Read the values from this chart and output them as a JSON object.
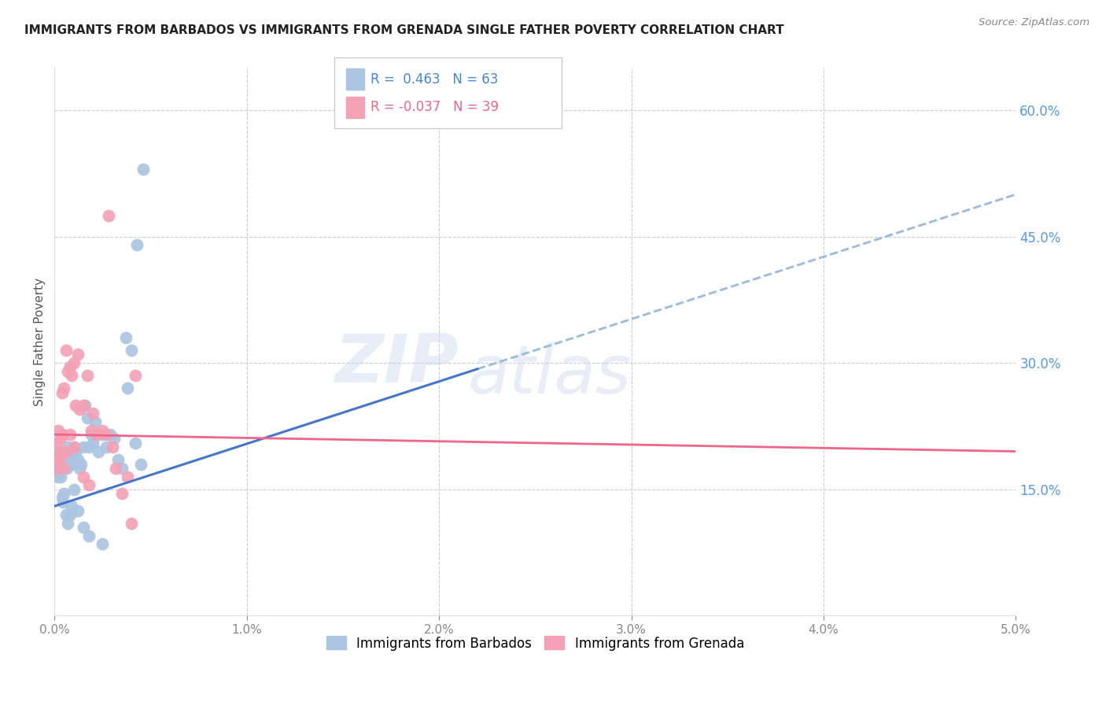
{
  "title": "IMMIGRANTS FROM BARBADOS VS IMMIGRANTS FROM GRENADA SINGLE FATHER POVERTY CORRELATION CHART",
  "source": "Source: ZipAtlas.com",
  "ylabel": "Single Father Poverty",
  "series1_color": "#aac4e2",
  "series2_color": "#f4a0b5",
  "line1_color": "#4477cc",
  "line2_color": "#ee6688",
  "line1_dash_color": "#99bbdd",
  "xmin": 0.0,
  "xmax": 0.05,
  "ymin": 0.0,
  "ymax": 0.65,
  "yticks": [
    0.15,
    0.3,
    0.45,
    0.6
  ],
  "ytick_labels": [
    "15.0%",
    "30.0%",
    "45.0%",
    "60.0%"
  ],
  "xticks": [
    0.0,
    0.01,
    0.02,
    0.03,
    0.04,
    0.05
  ],
  "xtick_labels": [
    "0.0%",
    "1.0%",
    "2.0%",
    "3.0%",
    "4.0%",
    "5.0%"
  ],
  "line1_x0": 0.0,
  "line1_y0": 0.13,
  "line1_x1": 0.05,
  "line1_y1": 0.5,
  "line1_solid_x1": 0.022,
  "line2_x0": 0.0,
  "line2_y0": 0.215,
  "line2_x1": 0.05,
  "line2_y1": 0.195,
  "watermark": "ZIPatlas",
  "barbados_x": [
    0.00015,
    0.0002,
    0.00025,
    0.0003,
    0.00035,
    0.0004,
    0.00045,
    0.0005,
    0.00055,
    0.0006,
    0.00065,
    0.0007,
    0.00075,
    0.0008,
    0.00085,
    0.0009,
    0.00095,
    0.001,
    0.0011,
    0.0012,
    0.0013,
    0.0014,
    0.0015,
    0.0016,
    0.0017,
    0.0018,
    0.0019,
    0.002,
    0.0021,
    0.0022,
    0.0023,
    0.0025,
    0.0027,
    0.0029,
    0.0031,
    0.0033,
    0.0035,
    0.0037,
    0.004,
    0.0042,
    0.0045,
    0.0001,
    0.0001,
    0.00015,
    0.0002,
    0.00025,
    0.0003,
    0.00035,
    0.0004,
    0.00045,
    0.0005,
    0.0006,
    0.0007,
    0.0008,
    0.0009,
    0.001,
    0.0012,
    0.0015,
    0.0018,
    0.0025,
    0.0038,
    0.0043,
    0.0046
  ],
  "barbados_y": [
    0.195,
    0.185,
    0.18,
    0.175,
    0.18,
    0.175,
    0.185,
    0.19,
    0.185,
    0.195,
    0.175,
    0.2,
    0.185,
    0.19,
    0.195,
    0.18,
    0.185,
    0.2,
    0.195,
    0.185,
    0.175,
    0.18,
    0.2,
    0.25,
    0.235,
    0.2,
    0.215,
    0.205,
    0.23,
    0.215,
    0.195,
    0.215,
    0.2,
    0.215,
    0.21,
    0.185,
    0.175,
    0.33,
    0.315,
    0.205,
    0.18,
    0.18,
    0.19,
    0.165,
    0.17,
    0.175,
    0.165,
    0.175,
    0.14,
    0.135,
    0.145,
    0.12,
    0.11,
    0.12,
    0.13,
    0.15,
    0.125,
    0.105,
    0.095,
    0.085,
    0.27,
    0.44,
    0.53
  ],
  "grenada_x": [
    0.0001,
    0.00015,
    0.0002,
    0.00025,
    0.0003,
    0.0004,
    0.0005,
    0.0006,
    0.0007,
    0.0008,
    0.0009,
    0.001,
    0.0011,
    0.0012,
    0.0013,
    0.0015,
    0.0017,
    0.0019,
    0.002,
    0.0022,
    0.0025,
    0.0027,
    0.003,
    0.0032,
    0.0035,
    0.0038,
    0.004,
    0.0042,
    0.0001,
    0.0002,
    0.0003,
    0.0004,
    0.0005,
    0.0006,
    0.0008,
    0.001,
    0.0015,
    0.0018,
    0.0028
  ],
  "grenada_y": [
    0.205,
    0.185,
    0.22,
    0.195,
    0.21,
    0.265,
    0.27,
    0.315,
    0.29,
    0.295,
    0.285,
    0.3,
    0.25,
    0.31,
    0.245,
    0.25,
    0.285,
    0.22,
    0.24,
    0.215,
    0.22,
    0.215,
    0.2,
    0.175,
    0.145,
    0.165,
    0.11,
    0.285,
    0.175,
    0.185,
    0.19,
    0.215,
    0.175,
    0.195,
    0.215,
    0.2,
    0.165,
    0.155,
    0.475
  ]
}
